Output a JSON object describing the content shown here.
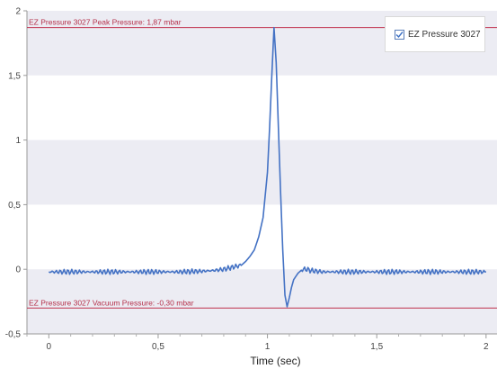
{
  "colors": {
    "series": "#4472c4",
    "reference": "#c0314e",
    "band": "#ececf3",
    "plot_bg": "#ffffff"
  },
  "legend": {
    "checked": true,
    "label": "EZ Pressure 3027",
    "icon": "checkbox-checked-icon"
  },
  "chart_data": {
    "type": "line",
    "title": "",
    "xlabel": "Time (sec)",
    "ylabel": "",
    "xlim": [
      -0.1,
      2.05
    ],
    "ylim": [
      -0.5,
      2.0
    ],
    "x_ticks": [
      0,
      0.5,
      1,
      1.5,
      2
    ],
    "x_tick_labels": [
      "0",
      "0,5",
      "1",
      "1,5",
      "2"
    ],
    "y_ticks": [
      -0.5,
      0,
      0.5,
      1,
      1.5,
      2
    ],
    "y_tick_labels": [
      "-0,5",
      "0",
      "0,5",
      "1",
      "1,5",
      "2"
    ],
    "grid": "horizontal alternating bands",
    "legend_position": "top-right",
    "reference_lines": [
      {
        "y": 1.87,
        "label": "EZ Pressure 3027 Peak Pressure: 1,87 mbar"
      },
      {
        "y": -0.3,
        "label": "EZ Pressure 3027 Vacuum Pressure: -0,30 mbar"
      }
    ],
    "series": [
      {
        "name": "EZ Pressure 3027",
        "x": [
          0,
          0.1,
          0.2,
          0.3,
          0.4,
          0.5,
          0.6,
          0.7,
          0.75,
          0.8,
          0.85,
          0.88,
          0.9,
          0.92,
          0.94,
          0.96,
          0.98,
          1.0,
          1.01,
          1.02,
          1.03,
          1.04,
          1.05,
          1.06,
          1.07,
          1.08,
          1.09,
          1.1,
          1.11,
          1.12,
          1.14,
          1.16,
          1.18,
          1.2,
          1.25,
          1.3,
          1.35,
          1.4,
          1.5,
          1.6,
          1.7,
          1.8,
          1.9,
          2.0
        ],
        "y": [
          -0.02,
          -0.02,
          -0.02,
          -0.02,
          -0.02,
          -0.02,
          -0.02,
          -0.015,
          -0.01,
          0.0,
          0.02,
          0.03,
          0.06,
          0.1,
          0.15,
          0.25,
          0.4,
          0.75,
          1.1,
          1.5,
          1.87,
          1.6,
          1.1,
          0.6,
          0.15,
          -0.2,
          -0.29,
          -0.22,
          -0.14,
          -0.08,
          -0.03,
          0.0,
          0.0,
          -0.01,
          -0.02,
          -0.02,
          -0.02,
          -0.02,
          -0.02,
          -0.02,
          -0.02,
          -0.02,
          -0.02,
          -0.02
        ]
      }
    ]
  }
}
